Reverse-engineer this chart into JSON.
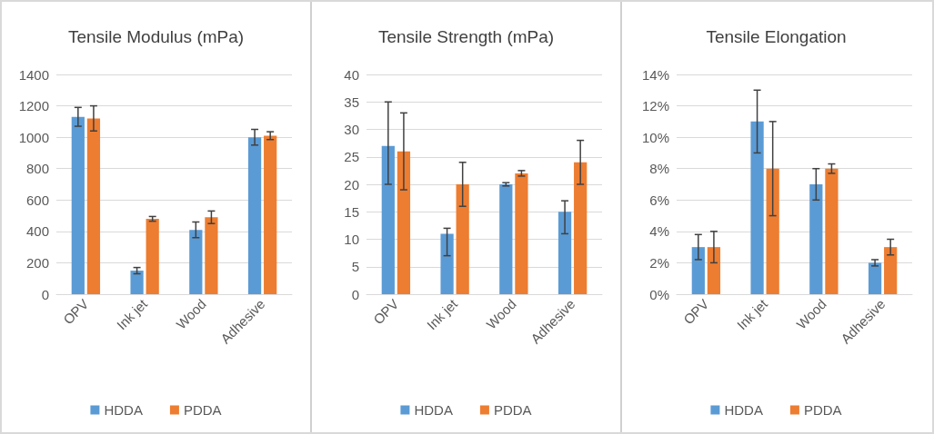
{
  "chart_data": [
    {
      "type": "bar",
      "title": "Tensile Modulus (mPa)",
      "categories": [
        "OPV",
        "Ink jet",
        "Wood",
        "Adhesive"
      ],
      "series": [
        {
          "name": "HDDA",
          "color": "#5b9bd5",
          "values": [
            1130,
            150,
            410,
            1000
          ],
          "errors": [
            60,
            20,
            50,
            50
          ]
        },
        {
          "name": "PDDA",
          "color": "#ed7d31",
          "values": [
            1120,
            480,
            490,
            1010
          ],
          "errors": [
            80,
            15,
            40,
            25
          ]
        }
      ],
      "ylim": [
        0,
        1400
      ],
      "yticks": [
        0,
        200,
        400,
        600,
        800,
        1000,
        1200,
        1400
      ],
      "grid": "y",
      "legend": "bottom"
    },
    {
      "type": "bar",
      "title": "Tensile Strength (mPa)",
      "categories": [
        "OPV",
        "Ink jet",
        "Wood",
        "Adhesive"
      ],
      "series": [
        {
          "name": "HDDA",
          "color": "#5b9bd5",
          "values": [
            27,
            11,
            20,
            15
          ],
          "errors": [
            [
              20,
              35
            ],
            [
              7,
              12
            ],
            0.3,
            [
              11,
              17
            ]
          ]
        },
        {
          "name": "PDDA",
          "color": "#ed7d31",
          "values": [
            26,
            20,
            22,
            24
          ],
          "errors": [
            7,
            4,
            0.5,
            4
          ]
        }
      ],
      "ylim": [
        0,
        40
      ],
      "yticks": [
        0,
        5,
        10,
        15,
        20,
        25,
        30,
        35,
        40
      ],
      "grid": "y",
      "legend": "bottom"
    },
    {
      "type": "bar",
      "title": "Tensile Elongation",
      "categories": [
        "OPV",
        "Ink jet",
        "Wood",
        "Adhesive"
      ],
      "series": [
        {
          "name": "HDDA",
          "color": "#5b9bd5",
          "values": [
            3,
            11,
            7,
            2
          ],
          "errors": [
            0.8,
            2,
            1,
            0.2
          ]
        },
        {
          "name": "PDDA",
          "color": "#ed7d31",
          "values": [
            3,
            8,
            8,
            3
          ],
          "errors": [
            1,
            3,
            0.3,
            0.5
          ]
        }
      ],
      "ylim": [
        0,
        14
      ],
      "yticks": [
        {
          "value": 0,
          "label": "0%"
        },
        {
          "value": 2,
          "label": "2%"
        },
        {
          "value": 4,
          "label": "4%"
        },
        {
          "value": 6,
          "label": "6%"
        },
        {
          "value": 8,
          "label": "8%"
        },
        {
          "value": 10,
          "label": "10%"
        },
        {
          "value": 12,
          "label": "12%"
        },
        {
          "value": 14,
          "label": "14%"
        }
      ],
      "grid": "y",
      "legend": "bottom"
    }
  ]
}
